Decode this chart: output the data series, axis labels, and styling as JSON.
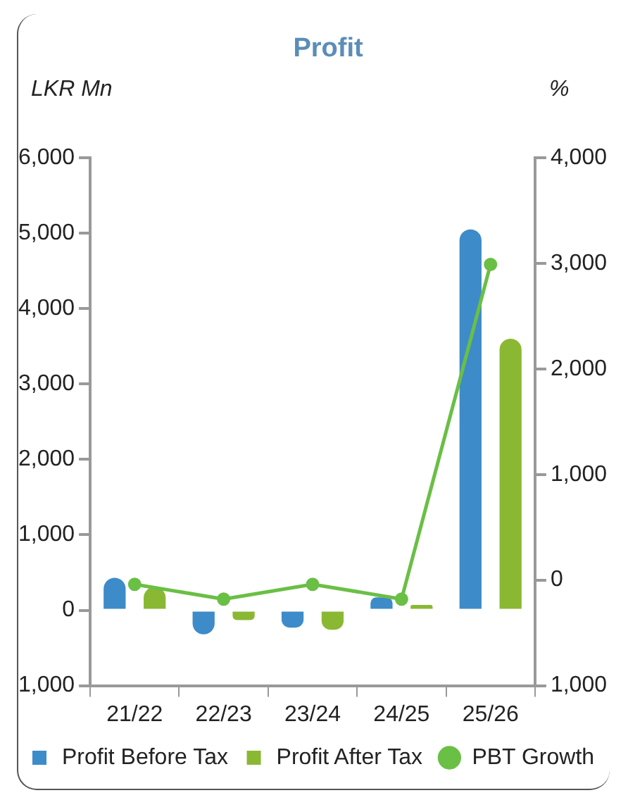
{
  "chart_data": {
    "type": "bar",
    "title": "Profit",
    "ylabel": "LKR Mn",
    "y2label": "%",
    "categories": [
      "21/22",
      "22/23",
      "23/24",
      "24/25",
      "25/26"
    ],
    "series": [
      {
        "name": "Profit Before Tax",
        "color": "#3d8bc9",
        "values": [
          430,
          -320,
          -230,
          170,
          5050
        ]
      },
      {
        "name": "Profit After Tax",
        "color": "#8ab833",
        "values": [
          310,
          -130,
          -260,
          70,
          3600
        ]
      },
      {
        "name": "PBT Growth",
        "type": "line",
        "axis": "y2",
        "color": "#6abf45",
        "marker": "circle",
        "values": [
          -40,
          -180,
          -40,
          -180,
          2990
        ]
      }
    ],
    "ylim": [
      -1000,
      6000
    ],
    "yticks": [
      {
        "value": -1000,
        "label": "1,000"
      },
      {
        "value": 0,
        "label": "0"
      },
      {
        "value": 1000,
        "label": "1,000"
      },
      {
        "value": 2000,
        "label": "2,000"
      },
      {
        "value": 3000,
        "label": "3,000"
      },
      {
        "value": 4000,
        "label": "4,000"
      },
      {
        "value": 5000,
        "label": "5,000"
      },
      {
        "value": 6000,
        "label": "6,000"
      }
    ],
    "y2lim": [
      -1000,
      4000
    ],
    "y2ticks": [
      {
        "value": -1000,
        "label": "1,000"
      },
      {
        "value": 0,
        "label": "0"
      },
      {
        "value": 1000,
        "label": "1,000"
      },
      {
        "value": 2000,
        "label": "2,000"
      },
      {
        "value": 3000,
        "label": "3,000"
      },
      {
        "value": 4000,
        "label": "4,000"
      }
    ],
    "grid": false,
    "legend": "bottom"
  }
}
